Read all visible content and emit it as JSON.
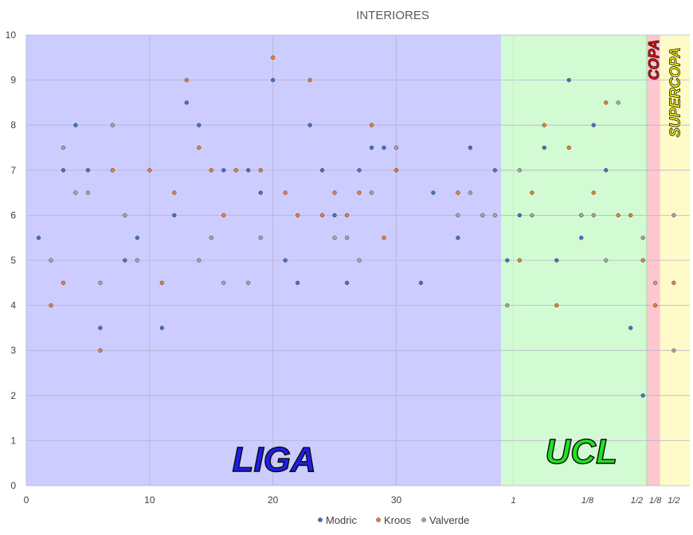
{
  "chart_data": {
    "type": "scatter",
    "title": "INTERIORES",
    "xlim": [
      0,
      53.8
    ],
    "ylim": [
      0,
      10
    ],
    "x_ticks": [
      0,
      10,
      20,
      30
    ],
    "y_ticks": [
      0,
      1,
      2,
      3,
      4,
      5,
      6,
      7,
      8,
      9,
      10
    ],
    "grid": true,
    "legend": "bottom",
    "regions": [
      {
        "label": "LIGA",
        "x_range": [
          0,
          38.5
        ],
        "fill": "#ccccff",
        "text_color": "#1f1fe8",
        "stroke": "#0a0a0a"
      },
      {
        "label": "UCL",
        "x_range": [
          38.5,
          50.3
        ],
        "fill": "#d3fbd3",
        "text_color": "#22e022",
        "stroke": "#0a0a0a"
      },
      {
        "label": "COPA",
        "x_range": [
          50.3,
          51.4
        ],
        "fill": "#ffc7cf",
        "text_color": "#ff1010",
        "stroke": "#0a0a0a"
      },
      {
        "label": "SUPERCOPA",
        "x_range": [
          51.4,
          53.8
        ],
        "fill": "#fffbc8",
        "text_color": "#ffff00",
        "stroke": "#0a0a0a"
      }
    ],
    "round_labels": [
      {
        "text": "1",
        "x": 39.5
      },
      {
        "text": "1/8",
        "x": 45.5
      },
      {
        "text": "1/2",
        "x": 49.5
      },
      {
        "text": "1/8",
        "x": 51.0
      },
      {
        "text": "1/2",
        "x": 52.5
      }
    ],
    "series": [
      {
        "name": "Modric",
        "color": "#4472c4",
        "points": [
          [
            1,
            5.5
          ],
          [
            3,
            7
          ],
          [
            4,
            8
          ],
          [
            5,
            7
          ],
          [
            6,
            3.5
          ],
          [
            8,
            5
          ],
          [
            9,
            5.5
          ],
          [
            11,
            3.5
          ],
          [
            12,
            6
          ],
          [
            13,
            8.5
          ],
          [
            14,
            8
          ],
          [
            16,
            7
          ],
          [
            18,
            7
          ],
          [
            19,
            6.5
          ],
          [
            20,
            9
          ],
          [
            21,
            5
          ],
          [
            22,
            4.5
          ],
          [
            23,
            8
          ],
          [
            24,
            7
          ],
          [
            25,
            6
          ],
          [
            26,
            4.5
          ],
          [
            27,
            7
          ],
          [
            28,
            7.5
          ],
          [
            29,
            7.5
          ],
          [
            30,
            7
          ],
          [
            32,
            4.5
          ],
          [
            33,
            6.5
          ],
          [
            35,
            5.5
          ],
          [
            36,
            7.5
          ],
          [
            38,
            7
          ],
          [
            39,
            5
          ],
          [
            40,
            6
          ],
          [
            42,
            7.5
          ],
          [
            43,
            5
          ],
          [
            44,
            9
          ],
          [
            45,
            5.5
          ],
          [
            46,
            8
          ],
          [
            47,
            7
          ],
          [
            49,
            3.5
          ],
          [
            50,
            2
          ]
        ]
      },
      {
        "name": "Kroos",
        "color": "#ed7d31",
        "points": [
          [
            2,
            4
          ],
          [
            3,
            4.5
          ],
          [
            6,
            3
          ],
          [
            7,
            7
          ],
          [
            10,
            7
          ],
          [
            11,
            4.5
          ],
          [
            12,
            6.5
          ],
          [
            13,
            9
          ],
          [
            14,
            7.5
          ],
          [
            15,
            7
          ],
          [
            16,
            6
          ],
          [
            17,
            7
          ],
          [
            19,
            7
          ],
          [
            20,
            9.5
          ],
          [
            21,
            6.5
          ],
          [
            22,
            6
          ],
          [
            23,
            9
          ],
          [
            24,
            6
          ],
          [
            25,
            6.5
          ],
          [
            26,
            6
          ],
          [
            27,
            6.5
          ],
          [
            28,
            8
          ],
          [
            29,
            5.5
          ],
          [
            30,
            7
          ],
          [
            35,
            6.5
          ],
          [
            40,
            5
          ],
          [
            41,
            6.5
          ],
          [
            42,
            8
          ],
          [
            43,
            4
          ],
          [
            44,
            7.5
          ],
          [
            45,
            6
          ],
          [
            46,
            6.5
          ],
          [
            47,
            8.5
          ],
          [
            48,
            6
          ],
          [
            49,
            6
          ],
          [
            50,
            5
          ],
          [
            51,
            4
          ],
          [
            52.5,
            4.5
          ]
        ]
      },
      {
        "name": "Valverde",
        "color": "#a5a5a5",
        "points": [
          [
            2,
            5
          ],
          [
            3,
            7.5
          ],
          [
            4,
            6.5
          ],
          [
            5,
            6.5
          ],
          [
            6,
            4.5
          ],
          [
            7,
            8
          ],
          [
            8,
            6
          ],
          [
            9,
            5
          ],
          [
            14,
            5
          ],
          [
            15,
            5.5
          ],
          [
            16,
            4.5
          ],
          [
            18,
            4.5
          ],
          [
            19,
            5.5
          ],
          [
            25,
            5.5
          ],
          [
            26,
            5.5
          ],
          [
            27,
            5
          ],
          [
            28,
            6.5
          ],
          [
            30,
            7.5
          ],
          [
            35,
            6
          ],
          [
            36,
            6.5
          ],
          [
            37,
            6
          ],
          [
            38,
            6
          ],
          [
            39,
            4
          ],
          [
            40,
            7
          ],
          [
            41,
            6
          ],
          [
            45,
            6
          ],
          [
            46,
            6
          ],
          [
            47,
            5
          ],
          [
            48,
            8.5
          ],
          [
            50,
            5.5
          ],
          [
            51,
            4.5
          ],
          [
            52.5,
            6
          ],
          [
            52.5,
            3
          ]
        ]
      }
    ]
  }
}
